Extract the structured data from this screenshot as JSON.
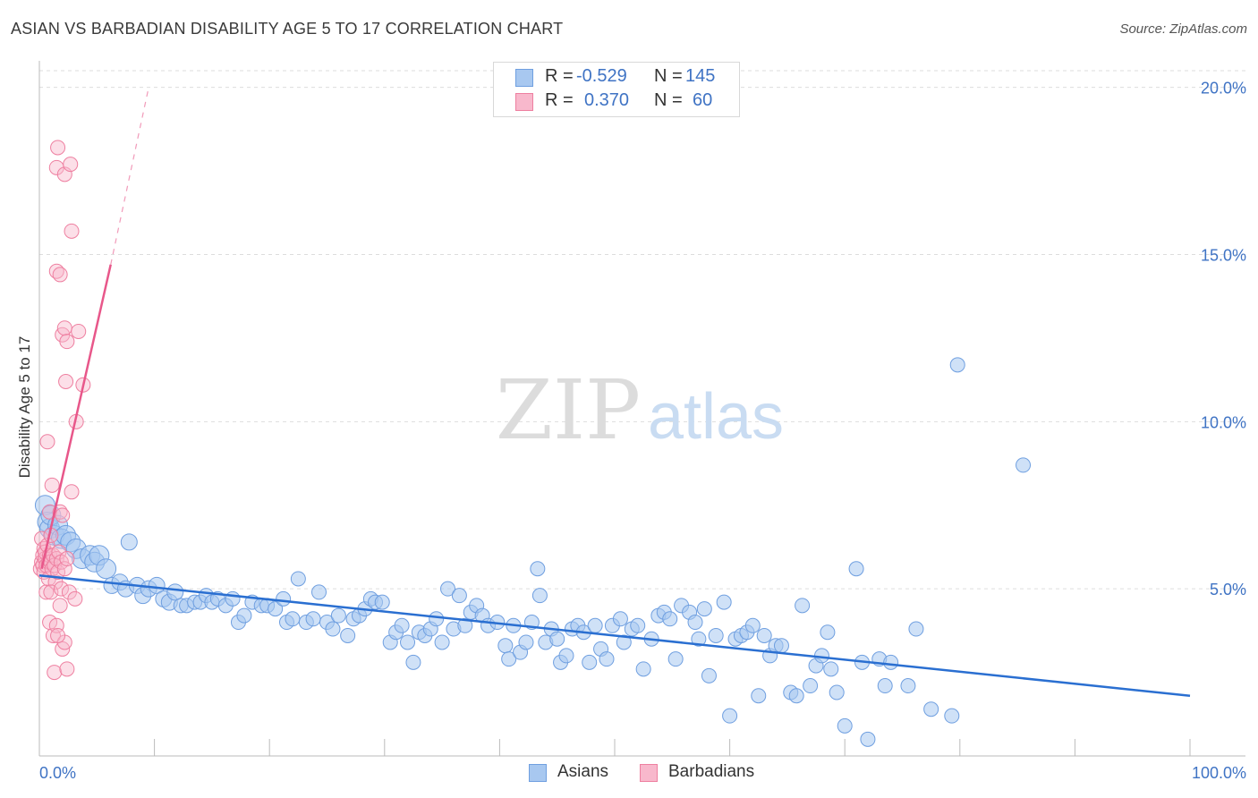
{
  "title": "ASIAN VS BARBADIAN DISABILITY AGE 5 TO 17 CORRELATION CHART",
  "source": "Source: ZipAtlas.com",
  "watermark": {
    "zip": "ZIP",
    "atlas": "atlas"
  },
  "legend_top": {
    "rows": [
      {
        "r_label": "R =",
        "r_value": "-0.529",
        "n_label": "N =",
        "n_value": "145"
      },
      {
        "r_label": "R =",
        "r_value": "0.370",
        "n_label": "N =",
        "n_value": "60"
      }
    ]
  },
  "legend_bottom": {
    "asians": "Asians",
    "barbadians": "Barbadians"
  },
  "colors": {
    "asian_fill": "#a8c8f0",
    "asian_stroke": "#6f9fe0",
    "asian_line": "#2a6fd1",
    "barb_fill": "#f8b8cc",
    "barb_stroke": "#ee7fa0",
    "barb_line": "#e8578a",
    "tick_label": "#3f73c4",
    "grid": "#dddddd"
  },
  "chart_data": {
    "type": "scatter",
    "title": "ASIAN VS BARBADIAN DISABILITY AGE 5 TO 17 CORRELATION CHART",
    "xlabel": "",
    "ylabel": "Disability Age 5 to 17",
    "xlim": [
      0,
      100
    ],
    "ylim": [
      0,
      20.5
    ],
    "x_tick_labels": [
      "0.0%",
      "100.0%"
    ],
    "y_ticks": [
      5,
      10,
      15,
      20
    ],
    "y_tick_labels": [
      "5.0%",
      "10.0%",
      "15.0%",
      "20.0%"
    ],
    "series": [
      {
        "name": "Asians",
        "r": -0.529,
        "n": 145,
        "trend": {
          "x": [
            0,
            100
          ],
          "y": [
            5.4,
            1.8
          ],
          "style": "solid"
        },
        "points": [
          [
            0.5,
            7.5
          ],
          [
            0.7,
            7.0
          ],
          [
            0.9,
            6.8
          ],
          [
            1.0,
            7.2
          ],
          [
            1.3,
            6.6
          ],
          [
            1.6,
            6.9
          ],
          [
            1.9,
            6.5
          ],
          [
            2.3,
            6.6
          ],
          [
            2.7,
            6.4
          ],
          [
            3.2,
            6.2
          ],
          [
            3.7,
            5.9
          ],
          [
            4.4,
            6.0
          ],
          [
            4.8,
            5.8
          ],
          [
            5.2,
            6.0
          ],
          [
            5.8,
            5.6
          ],
          [
            6.3,
            5.1
          ],
          [
            7.0,
            5.2
          ],
          [
            7.5,
            5.0
          ],
          [
            7.8,
            6.4
          ],
          [
            8.5,
            5.1
          ],
          [
            9.0,
            4.8
          ],
          [
            9.5,
            5.0
          ],
          [
            10.2,
            5.1
          ],
          [
            10.8,
            4.7
          ],
          [
            11.3,
            4.6
          ],
          [
            11.8,
            4.9
          ],
          [
            12.3,
            4.5
          ],
          [
            12.8,
            4.5
          ],
          [
            13.5,
            4.6
          ],
          [
            14.0,
            4.6
          ],
          [
            14.5,
            4.8
          ],
          [
            15.0,
            4.6
          ],
          [
            15.5,
            4.7
          ],
          [
            16.2,
            4.5
          ],
          [
            16.8,
            4.7
          ],
          [
            17.3,
            4.0
          ],
          [
            17.8,
            4.2
          ],
          [
            18.5,
            4.6
          ],
          [
            19.3,
            4.5
          ],
          [
            19.8,
            4.5
          ],
          [
            20.5,
            4.4
          ],
          [
            21.2,
            4.7
          ],
          [
            21.5,
            4.0
          ],
          [
            22.0,
            4.1
          ],
          [
            22.5,
            5.3
          ],
          [
            23.2,
            4.0
          ],
          [
            23.8,
            4.1
          ],
          [
            24.3,
            4.9
          ],
          [
            25.0,
            4.0
          ],
          [
            25.5,
            3.8
          ],
          [
            26.0,
            4.2
          ],
          [
            26.8,
            3.6
          ],
          [
            27.3,
            4.1
          ],
          [
            27.8,
            4.2
          ],
          [
            28.3,
            4.4
          ],
          [
            28.8,
            4.7
          ],
          [
            29.2,
            4.6
          ],
          [
            29.8,
            4.6
          ],
          [
            30.5,
            3.4
          ],
          [
            31.0,
            3.7
          ],
          [
            31.5,
            3.9
          ],
          [
            32.0,
            3.4
          ],
          [
            32.5,
            2.8
          ],
          [
            33.0,
            3.7
          ],
          [
            33.5,
            3.6
          ],
          [
            34.0,
            3.8
          ],
          [
            34.5,
            4.1
          ],
          [
            35.0,
            3.4
          ],
          [
            35.5,
            5.0
          ],
          [
            36.0,
            3.8
          ],
          [
            36.5,
            4.8
          ],
          [
            37.0,
            3.9
          ],
          [
            37.5,
            4.3
          ],
          [
            38.0,
            4.5
          ],
          [
            38.5,
            4.2
          ],
          [
            39.0,
            3.9
          ],
          [
            39.8,
            4.0
          ],
          [
            40.5,
            3.3
          ],
          [
            40.8,
            2.9
          ],
          [
            41.2,
            3.9
          ],
          [
            41.8,
            3.1
          ],
          [
            42.3,
            3.4
          ],
          [
            42.8,
            4.0
          ],
          [
            43.3,
            5.6
          ],
          [
            43.5,
            4.8
          ],
          [
            44.0,
            3.4
          ],
          [
            44.5,
            3.8
          ],
          [
            45.0,
            3.5
          ],
          [
            45.3,
            2.8
          ],
          [
            45.8,
            3.0
          ],
          [
            46.3,
            3.8
          ],
          [
            46.8,
            3.9
          ],
          [
            47.3,
            3.7
          ],
          [
            47.8,
            2.8
          ],
          [
            48.3,
            3.9
          ],
          [
            48.8,
            3.2
          ],
          [
            49.3,
            2.9
          ],
          [
            49.8,
            3.9
          ],
          [
            50.5,
            4.1
          ],
          [
            50.8,
            3.4
          ],
          [
            51.5,
            3.8
          ],
          [
            52.0,
            3.9
          ],
          [
            52.5,
            2.6
          ],
          [
            53.2,
            3.5
          ],
          [
            53.8,
            4.2
          ],
          [
            54.3,
            4.3
          ],
          [
            54.8,
            4.1
          ],
          [
            55.3,
            2.9
          ],
          [
            55.8,
            4.5
          ],
          [
            56.5,
            4.3
          ],
          [
            57.0,
            4.0
          ],
          [
            57.3,
            3.5
          ],
          [
            57.8,
            4.4
          ],
          [
            58.2,
            2.4
          ],
          [
            58.8,
            3.6
          ],
          [
            59.5,
            4.6
          ],
          [
            60.0,
            1.2
          ],
          [
            60.5,
            3.5
          ],
          [
            61.0,
            3.6
          ],
          [
            61.5,
            3.7
          ],
          [
            62.0,
            3.9
          ],
          [
            62.5,
            1.8
          ],
          [
            63.0,
            3.6
          ],
          [
            63.5,
            3.0
          ],
          [
            64.0,
            3.3
          ],
          [
            64.5,
            3.3
          ],
          [
            65.3,
            1.9
          ],
          [
            65.8,
            1.8
          ],
          [
            66.3,
            4.5
          ],
          [
            67.0,
            2.1
          ],
          [
            67.5,
            2.7
          ],
          [
            68.0,
            3.0
          ],
          [
            68.5,
            3.7
          ],
          [
            68.8,
            2.6
          ],
          [
            69.3,
            1.9
          ],
          [
            70.0,
            0.9
          ],
          [
            71.0,
            5.6
          ],
          [
            71.5,
            2.8
          ],
          [
            72.0,
            0.5
          ],
          [
            73.0,
            2.9
          ],
          [
            73.5,
            2.1
          ],
          [
            74.0,
            2.8
          ],
          [
            75.5,
            2.1
          ],
          [
            76.2,
            3.8
          ],
          [
            77.5,
            1.4
          ],
          [
            79.3,
            1.2
          ],
          [
            79.8,
            11.7
          ],
          [
            85.5,
            8.7
          ]
        ]
      },
      {
        "name": "Barbadians",
        "r": 0.37,
        "n": 60,
        "trend": {
          "x": [
            0.2,
            6.2
          ],
          "y": [
            5.6,
            14.7
          ],
          "style": "solid",
          "extension": {
            "x": [
              6.2,
              9.5
            ],
            "y": [
              14.7,
              20.0
            ],
            "style": "dashed"
          }
        },
        "points": [
          [
            0.1,
            5.6
          ],
          [
            0.2,
            6.5
          ],
          [
            0.2,
            5.8
          ],
          [
            0.3,
            6.0
          ],
          [
            0.3,
            5.7
          ],
          [
            0.4,
            6.2
          ],
          [
            0.4,
            5.5
          ],
          [
            0.5,
            5.9
          ],
          [
            0.5,
            6.1
          ],
          [
            0.6,
            5.7
          ],
          [
            0.6,
            4.9
          ],
          [
            0.7,
            6.3
          ],
          [
            0.8,
            5.8
          ],
          [
            0.8,
            5.3
          ],
          [
            0.9,
            6.0
          ],
          [
            0.9,
            7.3
          ],
          [
            1.0,
            5.8
          ],
          [
            1.0,
            6.6
          ],
          [
            1.1,
            5.6
          ],
          [
            1.2,
            6.0
          ],
          [
            1.3,
            5.7
          ],
          [
            1.4,
            5.2
          ],
          [
            1.5,
            5.9
          ],
          [
            1.6,
            5.5
          ],
          [
            1.7,
            6.1
          ],
          [
            1.8,
            7.3
          ],
          [
            1.9,
            5.8
          ],
          [
            2.0,
            7.2
          ],
          [
            2.2,
            5.6
          ],
          [
            2.4,
            5.9
          ],
          [
            0.7,
            9.4
          ],
          [
            1.1,
            8.1
          ],
          [
            2.8,
            7.9
          ],
          [
            1.5,
            14.5
          ],
          [
            2.0,
            12.6
          ],
          [
            2.2,
            12.8
          ],
          [
            2.4,
            12.4
          ],
          [
            3.2,
            10.0
          ],
          [
            1.5,
            17.6
          ],
          [
            1.6,
            18.2
          ],
          [
            2.2,
            17.4
          ],
          [
            2.7,
            17.7
          ],
          [
            2.8,
            15.7
          ],
          [
            3.4,
            12.7
          ],
          [
            3.8,
            11.1
          ],
          [
            2.3,
            11.2
          ],
          [
            1.8,
            14.4
          ],
          [
            0.9,
            4.0
          ],
          [
            1.2,
            3.6
          ],
          [
            1.3,
            2.5
          ],
          [
            1.5,
            3.9
          ],
          [
            1.8,
            4.5
          ],
          [
            2.0,
            3.2
          ],
          [
            2.2,
            3.4
          ],
          [
            2.4,
            2.6
          ],
          [
            1.0,
            4.9
          ],
          [
            1.6,
            3.6
          ],
          [
            1.9,
            5.0
          ],
          [
            2.6,
            4.9
          ],
          [
            3.1,
            4.7
          ]
        ]
      }
    ]
  }
}
